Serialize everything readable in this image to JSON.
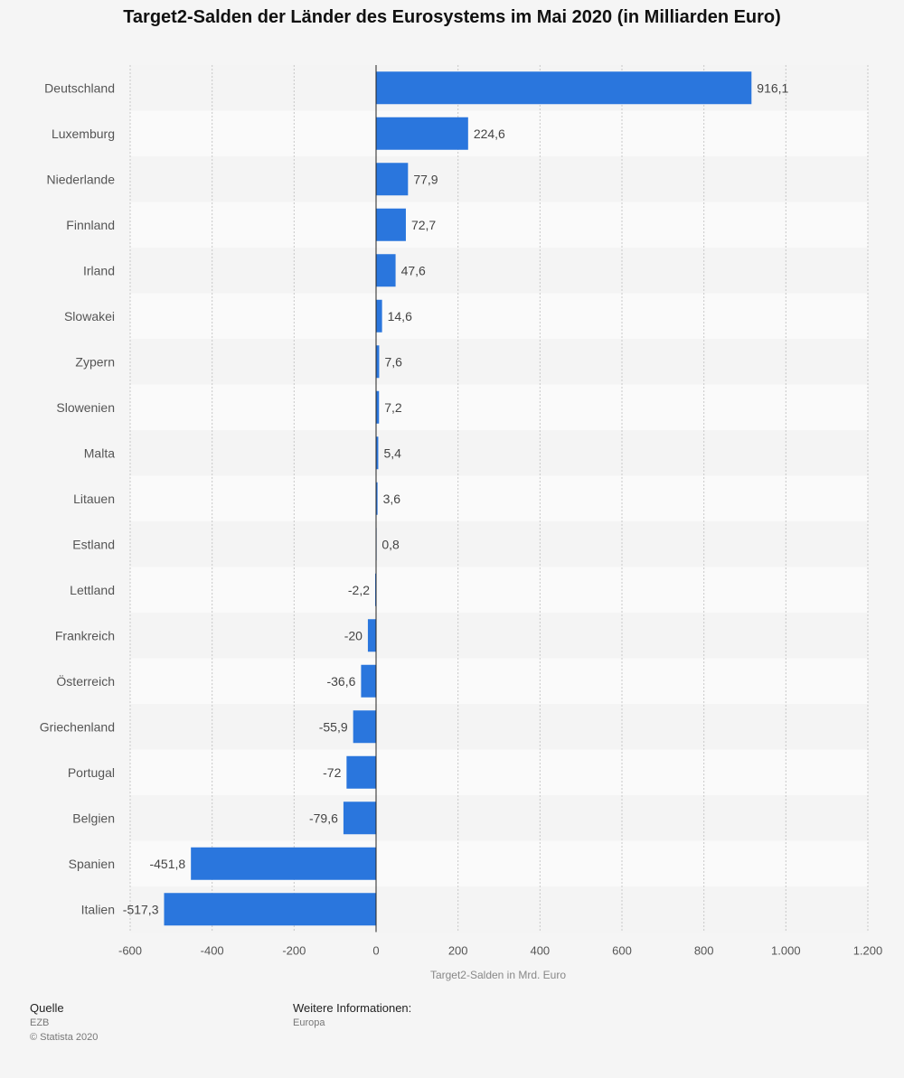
{
  "chart_data": {
    "type": "bar",
    "orientation": "horizontal",
    "title": "Target2-Salden der Länder des Eurosystems im Mai 2020 (in Milliarden Euro)",
    "xlabel": "Target2-Salden in Mrd. Euro",
    "ylabel": "",
    "xlim": [
      -600,
      1200
    ],
    "ticks": [
      -600,
      -400,
      -200,
      0,
      200,
      400,
      600,
      800,
      1000,
      1200
    ],
    "tick_labels": [
      "-600",
      "-400",
      "-200",
      "0",
      "200",
      "400",
      "600",
      "800",
      "1.000",
      "1.200"
    ],
    "categories": [
      "Deutschland",
      "Luxemburg",
      "Niederlande",
      "Finnland",
      "Irland",
      "Slowakei",
      "Zypern",
      "Slowenien",
      "Malta",
      "Litauen",
      "Estland",
      "Lettland",
      "Frankreich",
      "Österreich",
      "Griechenland",
      "Portugal",
      "Belgien",
      "Spanien",
      "Italien"
    ],
    "values": [
      916.1,
      224.6,
      77.9,
      72.7,
      47.6,
      14.6,
      7.6,
      7.2,
      5.4,
      3.6,
      0.8,
      -2.2,
      -20,
      -36.6,
      -55.9,
      -72,
      -79.6,
      -451.8,
      -517.3
    ],
    "value_labels": [
      "916,1",
      "224,6",
      "77,9",
      "72,7",
      "47,6",
      "14,6",
      "7,6",
      "7,2",
      "5,4",
      "3,6",
      "0,8",
      "-2,2",
      "-20",
      "-36,6",
      "-55,9",
      "-72",
      "-79,6",
      "-451,8",
      "-517,3"
    ],
    "grid": true,
    "bar_color": "#2a76dd"
  },
  "footer": {
    "source_heading": "Quelle",
    "source": "EZB",
    "copyright": "© Statista 2020",
    "info_heading": "Weitere Informationen:",
    "info": "Europa"
  }
}
